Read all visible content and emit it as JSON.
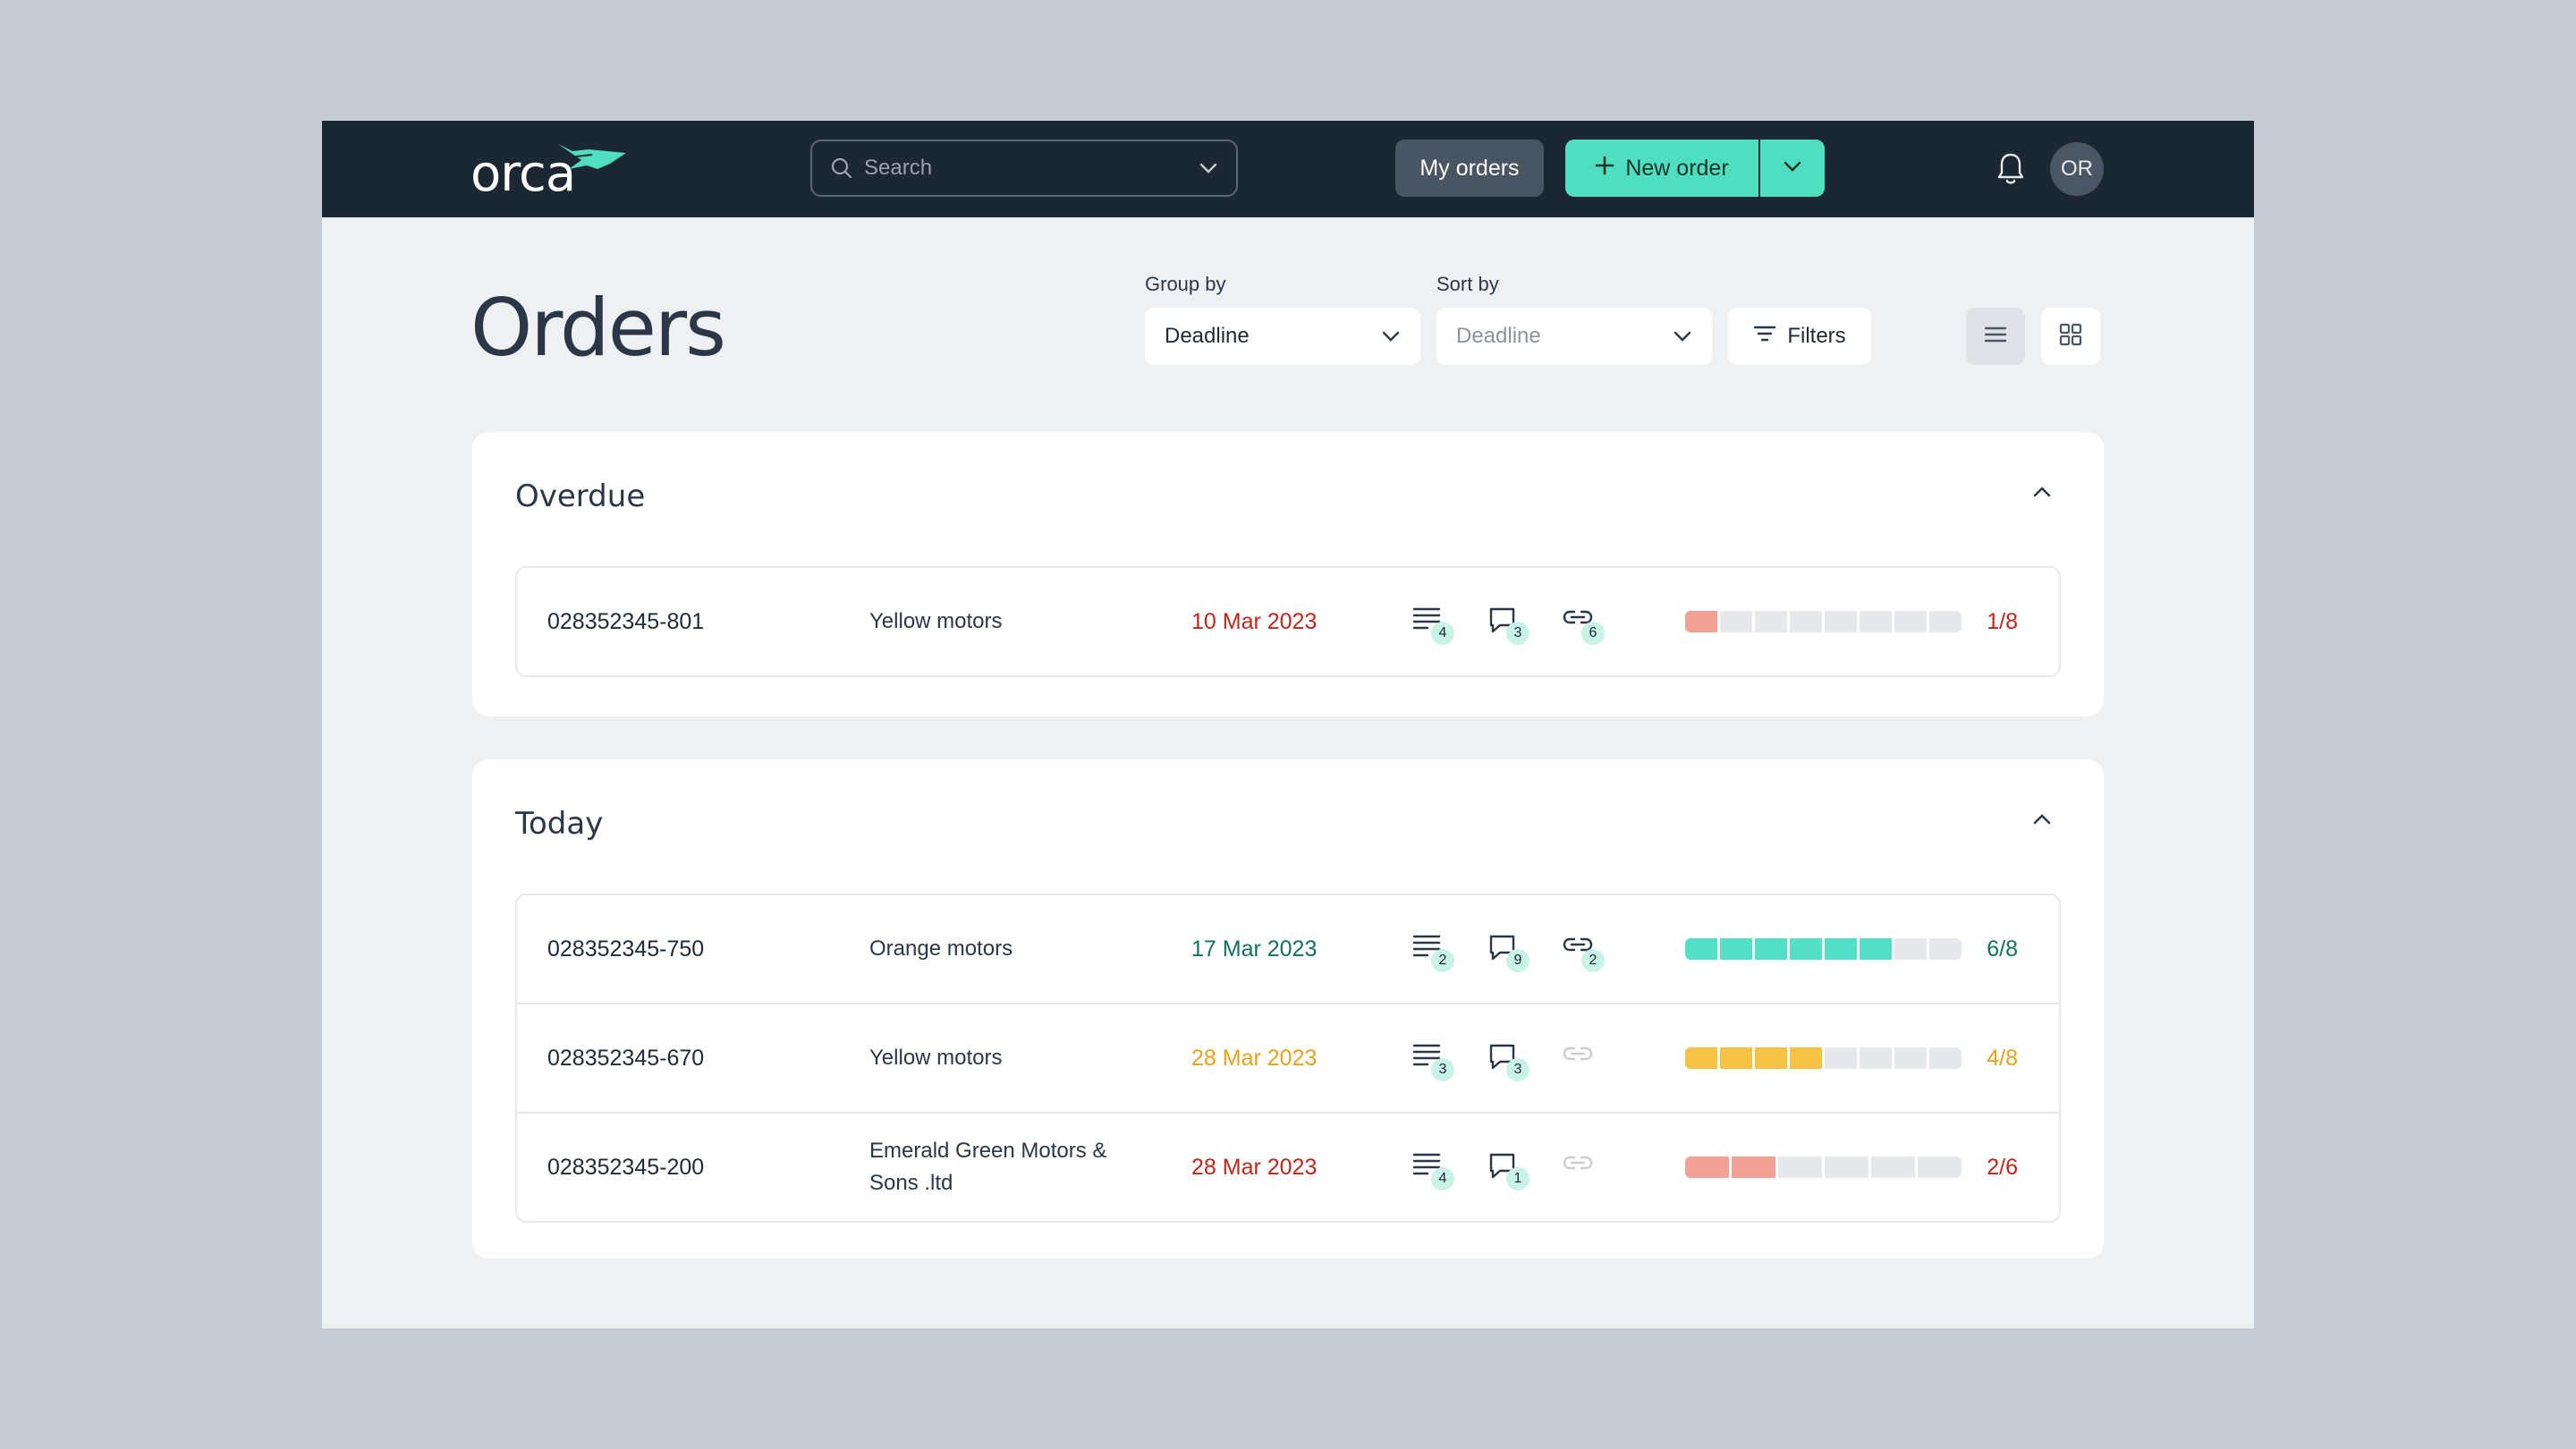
{
  "app": {
    "logo_text": "orca"
  },
  "search": {
    "placeholder": "Search"
  },
  "header": {
    "my_orders_label": "My orders",
    "new_order_label": "New order",
    "avatar_initials": "OR"
  },
  "page": {
    "title": "Orders",
    "group_by": {
      "label": "Group by",
      "value": "Deadline"
    },
    "sort_by": {
      "label": "Sort by",
      "value": "Deadline"
    },
    "filters_label": "Filters"
  },
  "colors": {
    "accent": "#4fdec0",
    "overdue": "#c0261c",
    "on_track": "#12705e",
    "warning": "#e8a21a",
    "bar_red": "#f4a195",
    "bar_teal": "#53e0c6",
    "bar_yellow": "#f6c243"
  },
  "groups": [
    {
      "title": "Overdue",
      "rows": [
        {
          "id": "028352345-801",
          "customer": "Yellow motors",
          "date": "10 Mar 2023",
          "date_color": "#c0261c",
          "tasks": "4",
          "comments": "3",
          "links": "6",
          "progress_done": 1,
          "progress_total": 8,
          "progress_label": "1/8",
          "bar_color": "#f4a195"
        }
      ]
    },
    {
      "title": "Today",
      "rows": [
        {
          "id": "028352345-750",
          "customer": "Orange motors",
          "date": "17 Mar 2023",
          "date_color": "#12705e",
          "tasks": "2",
          "comments": "9",
          "links": "2",
          "progress_done": 6,
          "progress_total": 8,
          "progress_label": "6/8",
          "bar_color": "#53e0c6"
        },
        {
          "id": "028352345-670",
          "customer": "Yellow motors",
          "date": "28 Mar 2023",
          "date_color": "#e8a21a",
          "tasks": "3",
          "comments": "3",
          "links": "",
          "progress_done": 4,
          "progress_total": 8,
          "progress_label": "4/8",
          "bar_color": "#f6c243"
        },
        {
          "id": "028352345-200",
          "customer": "Emerald Green Motors & Sons .ltd",
          "date": "28 Mar 2023",
          "date_color": "#c0261c",
          "tasks": "4",
          "comments": "1",
          "links": "",
          "progress_done": 2,
          "progress_total": 6,
          "progress_label": "2/6",
          "bar_color": "#f4a195"
        }
      ]
    }
  ]
}
